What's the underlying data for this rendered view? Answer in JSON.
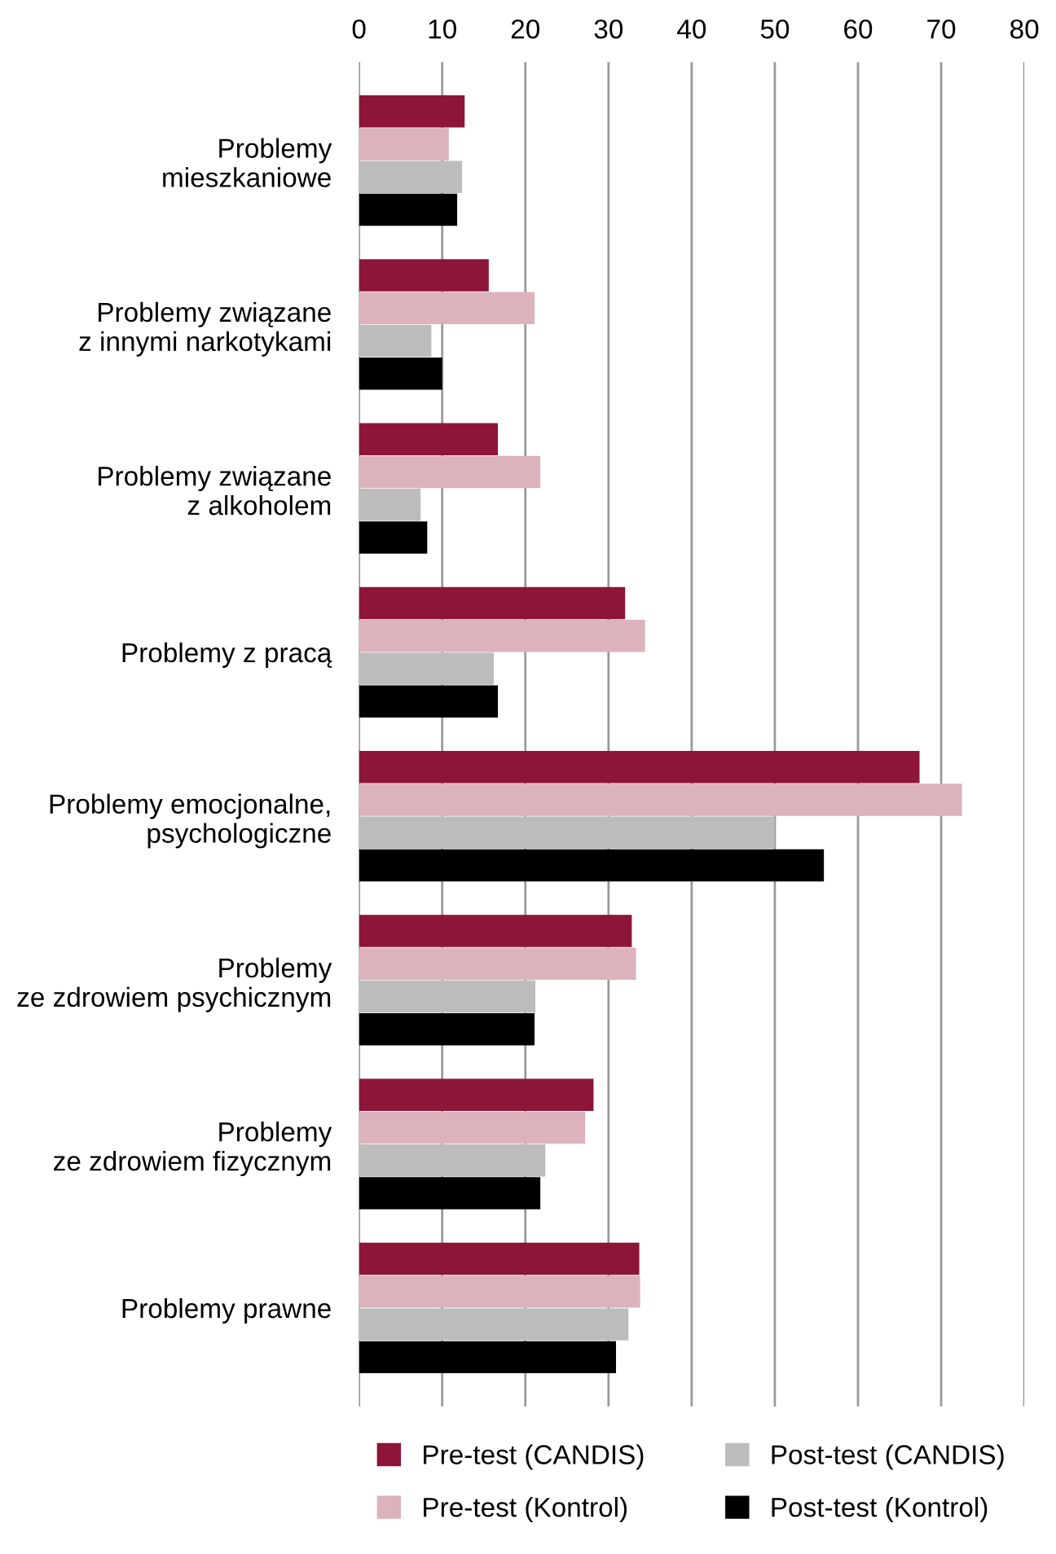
{
  "chart_data": {
    "type": "bar",
    "orientation": "horizontal",
    "categories": [
      "Problemy\nmieszkaniowe",
      "Problemy związane\nz innymi narkotykami",
      "Problemy związane\nz alkoholem",
      "Problemy z pracą",
      "Problemy emocjonalne,\npsychologiczne",
      "Problemy\nze zdrowiem psychicznym",
      "Problemy\nze zdrowiem fizycznym",
      "Problemy prawne"
    ],
    "series": [
      {
        "name": "Pre-test (CANDIS)",
        "color": "#8c1538",
        "values": [
          12.7,
          15.6,
          16.7,
          32.0,
          67.4,
          32.8,
          28.2,
          33.7
        ]
      },
      {
        "name": "Pre-test (Kontrol)",
        "color": "#dcb2bd",
        "values": [
          10.8,
          21.1,
          21.8,
          34.4,
          72.5,
          33.3,
          27.2,
          33.8
        ]
      },
      {
        "name": "Post-test (CANDIS)",
        "color": "#bcbcbc",
        "values": [
          12.4,
          8.7,
          7.4,
          16.2,
          50.0,
          21.2,
          22.4,
          32.4
        ]
      },
      {
        "name": "Post-test (Kontrol)",
        "color": "#000000",
        "values": [
          11.8,
          10.0,
          8.2,
          16.7,
          55.9,
          21.1,
          21.8,
          30.9
        ]
      }
    ],
    "xlim": [
      0,
      80
    ],
    "xticks": [
      0,
      10,
      20,
      30,
      40,
      50,
      60,
      70,
      80
    ],
    "grid": "x",
    "legend": "bottom"
  }
}
